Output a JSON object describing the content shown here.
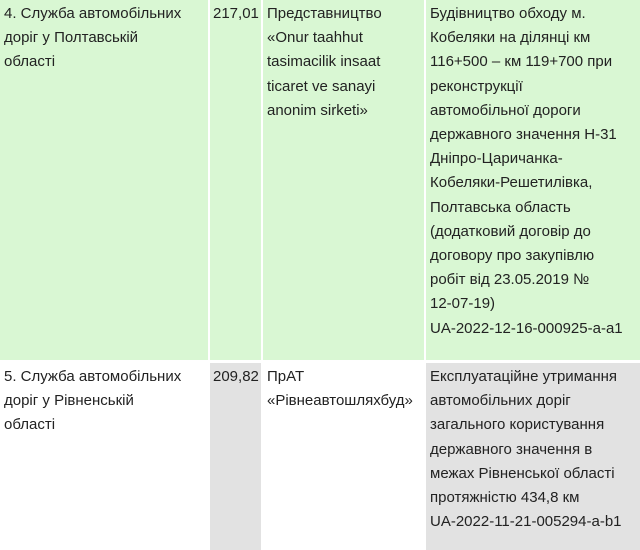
{
  "colors": {
    "highlight_row": "#d9f7d3",
    "shaded_cell": "#e2e2e2"
  },
  "rows": [
    {
      "customer": "4. Служба автомобільних\nдоріг у Полтавській\nобласті",
      "amount": "217,01",
      "contractor": "Представництво\n«Onur taahhut\ntasimacilik insaat\nticaret ve sanayi\nanonim sirketi»",
      "subject": "Будівництво обходу м.\nКобеляки на ділянці км\n116+500 – км 119+700 при\nреконструкції\nавтомобільної дороги\nдержавного значення Н-31\nДніпро-Царичанка-\nКобеляки-Решетилівка,\nПолтавська область\n(додатковий договір до\nдоговору про закупівлю\nробіт від 23.05.2019 №\n12-07-19)\nUA-2022-12-16-000925-a-a1"
    },
    {
      "customer": "5. Служба автомобільних\nдоріг у Рівненській\nобласті",
      "amount": "209,82",
      "contractor": "ПрАТ\n«Рівнеавтошляхбуд»",
      "subject": "Експлуатаційне утримання\nавтомобільних доріг\nзагального користування\nдержавного значення в\nмежах Рівненської області\nпротяжністю 434,8 км\nUA-2022-11-21-005294-a-b1"
    }
  ]
}
